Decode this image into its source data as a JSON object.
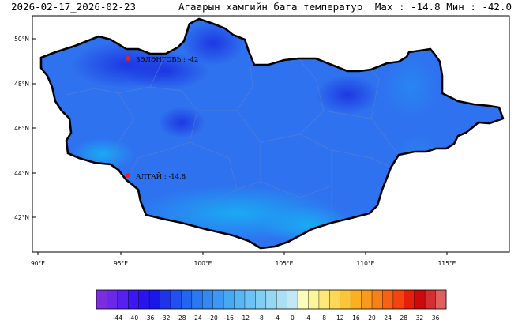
{
  "header": {
    "date_range": "2026-02-17_2026-02-23",
    "title": "Агаарын хамгийн бага температур",
    "summary": "Max : -14.8 Мин : -42.0"
  },
  "map": {
    "lat_ticks": [
      "50°N",
      "48°N",
      "46°N",
      "44°N",
      "42°N"
    ],
    "lon_ticks": [
      "90°E",
      "95°E",
      "100°E",
      "105°E",
      "110°E",
      "115°E"
    ],
    "points": [
      {
        "label": "ЗЭЛЭНГОВЬ : -42",
        "kind": "min"
      },
      {
        "label": "АЛТАЙ : -14.8",
        "kind": "max"
      }
    ],
    "colors": {
      "outline": "#000000",
      "marker": "#e8202a",
      "province": "#5a7fd0"
    }
  },
  "colorbar": {
    "labels": [
      "-44",
      "-40",
      "-36",
      "-32",
      "-28",
      "-24",
      "-20",
      "-16",
      "-12",
      "-8",
      "-4",
      "0",
      "4",
      "8",
      "12",
      "16",
      "20",
      "24",
      "28",
      "32",
      "36"
    ],
    "colors": [
      "#7a2ee0",
      "#6a28e8",
      "#5520f0",
      "#3c16f4",
      "#2814f0",
      "#1818e8",
      "#1e34e6",
      "#2050ee",
      "#2066f0",
      "#2a78f2",
      "#3488f4",
      "#3c98f4",
      "#48a8f4",
      "#58b6f4",
      "#6cc2f4",
      "#80cef4",
      "#96d8f4",
      "#acdff2",
      "#c2e8f6",
      "#fdfdbb",
      "#fdf59a",
      "#fce978",
      "#fcd858",
      "#fcc63a",
      "#fbb020",
      "#fa9a1a",
      "#f88016",
      "#f66212",
      "#f4440e",
      "#e2200c",
      "#cc0a0a",
      "#d23030",
      "#e06060"
    ]
  }
}
